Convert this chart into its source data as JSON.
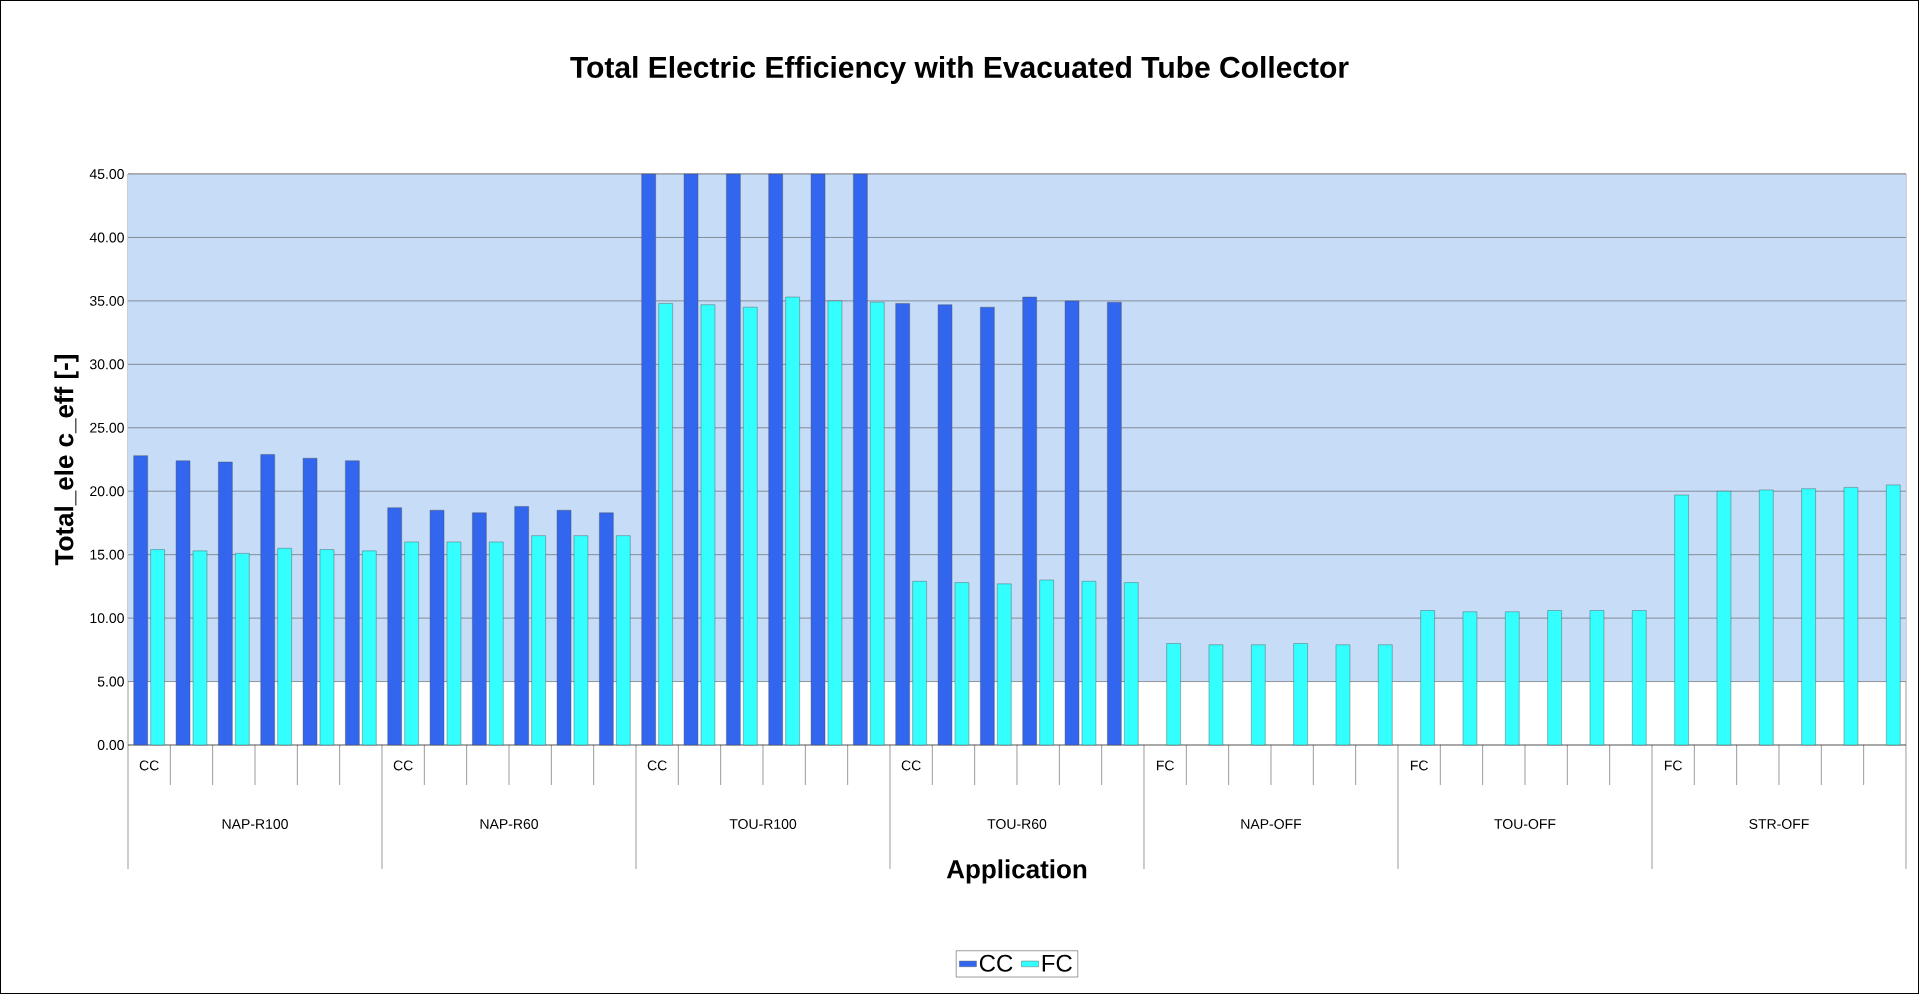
{
  "chart_data": {
    "type": "bar",
    "title": "Total Electric Efficiency with Evacuated Tube Collector",
    "xlabel": "Application",
    "ylabel": "Total_ele c_eff [-]",
    "categories": [
      "CC",
      null,
      null,
      null,
      null,
      null,
      "CC",
      null,
      null,
      null,
      null,
      null,
      "CC",
      null,
      null,
      null,
      null,
      null,
      "CC",
      null,
      null,
      null,
      null,
      null,
      "FC",
      null,
      null,
      null,
      null,
      null,
      "FC",
      null,
      null,
      null,
      null,
      null,
      "FC",
      null,
      null,
      null,
      null,
      null
    ],
    "annotations": [
      "NAP-R100",
      "NAP-R60",
      "TOU-R100",
      "TOU-R60",
      "NAP-OFF",
      "TOU-OFF",
      "STR-OFF"
    ],
    "series": [
      {
        "name": "CC",
        "color": "#3366ee",
        "values": [
          22.8,
          22.4,
          22.3,
          22.9,
          22.6,
          22.4,
          18.7,
          18.5,
          18.3,
          18.8,
          18.5,
          18.3,
          45,
          45,
          45,
          45,
          45,
          45,
          34.8,
          34.7,
          34.5,
          35.3,
          35.0,
          34.9,
          null,
          null,
          null,
          null,
          null,
          null,
          null,
          null,
          null,
          null,
          null,
          null,
          null,
          null,
          null,
          null,
          null,
          null
        ]
      },
      {
        "name": "FC",
        "color": "#33ffff",
        "values": [
          15.4,
          15.3,
          15.1,
          15.5,
          15.4,
          15.3,
          16.0,
          16.0,
          16.0,
          16.5,
          16.5,
          16.5,
          34.8,
          34.7,
          34.5,
          35.3,
          35.0,
          34.9,
          12.9,
          12.8,
          12.7,
          13.0,
          12.9,
          12.8,
          8.0,
          7.9,
          7.9,
          8.0,
          7.9,
          7.9,
          10.6,
          10.5,
          10.5,
          10.6,
          10.6,
          10.6,
          19.7,
          20.0,
          20.1,
          20.2,
          20.3,
          20.5
        ]
      }
    ],
    "ylim": [
      0,
      45
    ],
    "yticks": [
      {
        "value": 0,
        "label": "0.00"
      },
      {
        "value": 5,
        "label": "5.00"
      },
      {
        "value": 10,
        "label": "10.00"
      },
      {
        "value": 15,
        "label": "15.00"
      },
      {
        "value": 20,
        "label": "20.00"
      },
      {
        "value": 25,
        "label": "25.00"
      },
      {
        "value": 30,
        "label": "30.00"
      },
      {
        "value": 35,
        "label": "35.00"
      },
      {
        "value": 40,
        "label": "40.00"
      },
      {
        "value": 45,
        "label": "45.00"
      }
    ],
    "bands": [
      {
        "axis": "y",
        "from": 5,
        "to": 45,
        "color": "#c6dcf7"
      }
    ],
    "grid": "y",
    "legend": "bottom"
  }
}
